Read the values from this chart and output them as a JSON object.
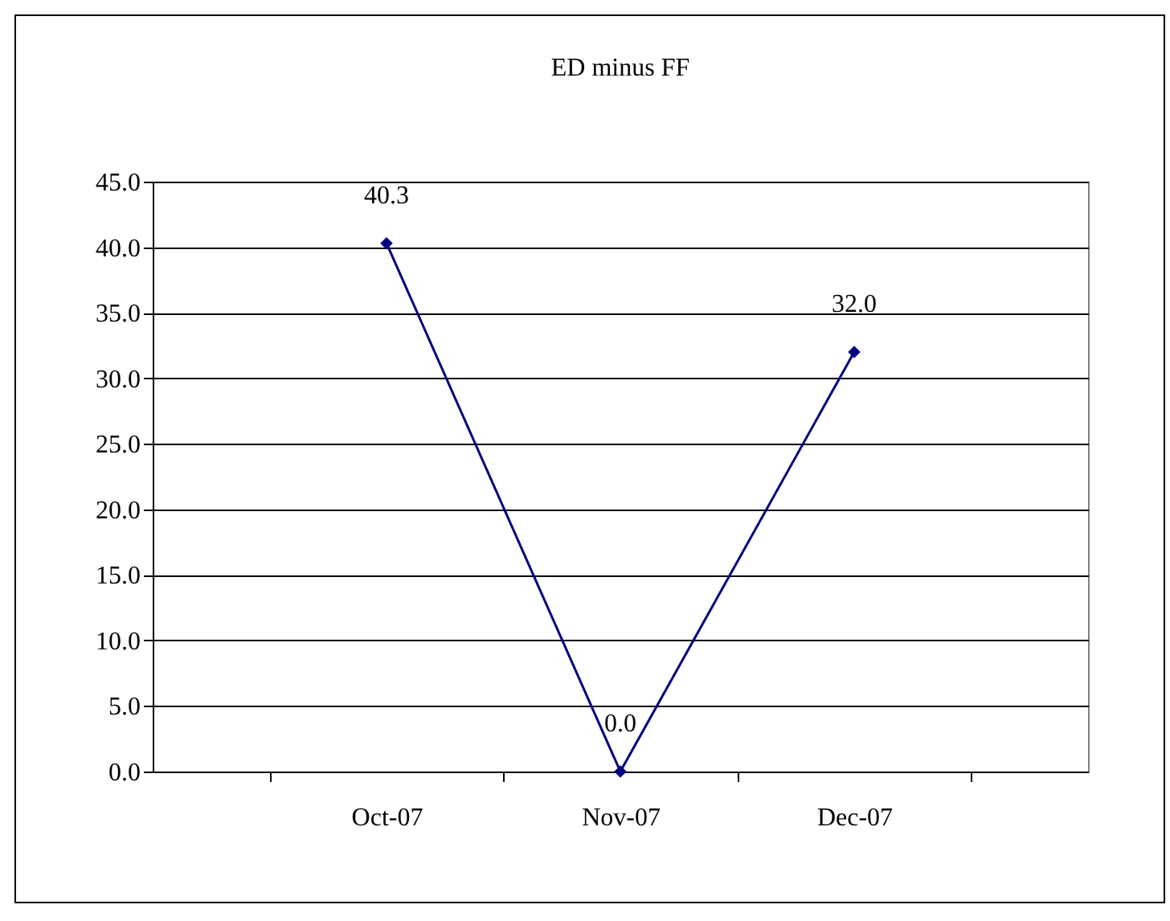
{
  "chart_data": {
    "type": "line",
    "title": "ED minus FF",
    "categories": [
      "Oct-07",
      "Nov-07",
      "Dec-07"
    ],
    "series": [
      {
        "color": "#000080",
        "values": [
          40.3,
          0.0,
          32.0
        ],
        "value_labels": [
          "40.3",
          "0.0",
          "32.0"
        ]
      }
    ],
    "ylim": [
      0,
      45
    ],
    "yticks": [
      {
        "value": 0,
        "label": "0.0"
      },
      {
        "value": 5,
        "label": "5.0"
      },
      {
        "value": 10,
        "label": "10.0"
      },
      {
        "value": 15,
        "label": "15.0"
      },
      {
        "value": 20,
        "label": "20.0"
      },
      {
        "value": 25,
        "label": "25.0"
      },
      {
        "value": 30,
        "label": "30.0"
      },
      {
        "value": 35,
        "label": "35.0"
      },
      {
        "value": 40,
        "label": "40.0"
      },
      {
        "value": 45,
        "label": "45.0"
      }
    ],
    "grid": "y",
    "marker": "diamond",
    "line_style": "solid"
  }
}
